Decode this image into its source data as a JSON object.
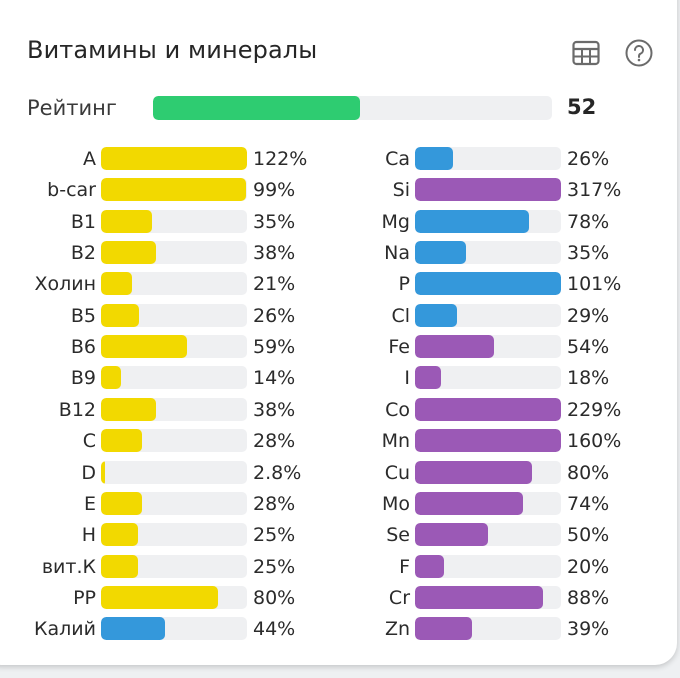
{
  "header": {
    "title": "Витамины и минералы",
    "icons": [
      "table-icon",
      "help-icon"
    ]
  },
  "rating": {
    "label": "Рейтинг",
    "value": "52",
    "percent": 52,
    "color": "#2ecc71"
  },
  "colors": {
    "vitamin": "#f2d900",
    "mineral_blue": "#3498db",
    "mineral_purple": "#9b59b6",
    "track": "#eff0f2"
  },
  "chart_data": {
    "type": "bar",
    "orientation": "horizontal",
    "title": "Витамины и минералы",
    "xlim": [
      0,
      100
    ],
    "unit": "%",
    "columns": [
      {
        "name": "left",
        "items": [
          {
            "label": "A",
            "value": 122,
            "text": "122%",
            "color": "#f2d900"
          },
          {
            "label": "b-car",
            "value": 99,
            "text": "99%",
            "color": "#f2d900"
          },
          {
            "label": "B1",
            "value": 35,
            "text": "35%",
            "color": "#f2d900"
          },
          {
            "label": "B2",
            "value": 38,
            "text": "38%",
            "color": "#f2d900"
          },
          {
            "label": "Холин",
            "value": 21,
            "text": "21%",
            "color": "#f2d900"
          },
          {
            "label": "B5",
            "value": 26,
            "text": "26%",
            "color": "#f2d900"
          },
          {
            "label": "B6",
            "value": 59,
            "text": "59%",
            "color": "#f2d900"
          },
          {
            "label": "B9",
            "value": 14,
            "text": "14%",
            "color": "#f2d900"
          },
          {
            "label": "B12",
            "value": 38,
            "text": "38%",
            "color": "#f2d900"
          },
          {
            "label": "C",
            "value": 28,
            "text": "28%",
            "color": "#f2d900"
          },
          {
            "label": "D",
            "value": 2.8,
            "text": "2.8%",
            "color": "#f2d900"
          },
          {
            "label": "E",
            "value": 28,
            "text": "28%",
            "color": "#f2d900"
          },
          {
            "label": "H",
            "value": 25,
            "text": "25%",
            "color": "#f2d900"
          },
          {
            "label": "вит.К",
            "value": 25,
            "text": "25%",
            "color": "#f2d900"
          },
          {
            "label": "PP",
            "value": 80,
            "text": "80%",
            "color": "#f2d900"
          },
          {
            "label": "Калий",
            "value": 44,
            "text": "44%",
            "color": "#3498db"
          }
        ]
      },
      {
        "name": "right",
        "items": [
          {
            "label": "Ca",
            "value": 26,
            "text": "26%",
            "color": "#3498db"
          },
          {
            "label": "Si",
            "value": 317,
            "text": "317%",
            "color": "#9b59b6"
          },
          {
            "label": "Mg",
            "value": 78,
            "text": "78%",
            "color": "#3498db"
          },
          {
            "label": "Na",
            "value": 35,
            "text": "35%",
            "color": "#3498db"
          },
          {
            "label": "P",
            "value": 101,
            "text": "101%",
            "color": "#3498db"
          },
          {
            "label": "Cl",
            "value": 29,
            "text": "29%",
            "color": "#3498db"
          },
          {
            "label": "Fe",
            "value": 54,
            "text": "54%",
            "color": "#9b59b6"
          },
          {
            "label": "I",
            "value": 18,
            "text": "18%",
            "color": "#9b59b6"
          },
          {
            "label": "Co",
            "value": 229,
            "text": "229%",
            "color": "#9b59b6"
          },
          {
            "label": "Mn",
            "value": 160,
            "text": "160%",
            "color": "#9b59b6"
          },
          {
            "label": "Cu",
            "value": 80,
            "text": "80%",
            "color": "#9b59b6"
          },
          {
            "label": "Mo",
            "value": 74,
            "text": "74%",
            "color": "#9b59b6"
          },
          {
            "label": "Se",
            "value": 50,
            "text": "50%",
            "color": "#9b59b6"
          },
          {
            "label": "F",
            "value": 20,
            "text": "20%",
            "color": "#9b59b6"
          },
          {
            "label": "Cr",
            "value": 88,
            "text": "88%",
            "color": "#9b59b6"
          },
          {
            "label": "Zn",
            "value": 39,
            "text": "39%",
            "color": "#9b59b6"
          }
        ]
      }
    ]
  }
}
